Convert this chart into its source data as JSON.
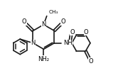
{
  "line_color": "#1a1a1a",
  "line_width": 1.2,
  "font_size": 6.0,
  "fig_width": 1.73,
  "fig_height": 1.17,
  "dpi": 100,
  "xlim": [
    0,
    10
  ],
  "ylim": [
    0,
    6.75
  ]
}
